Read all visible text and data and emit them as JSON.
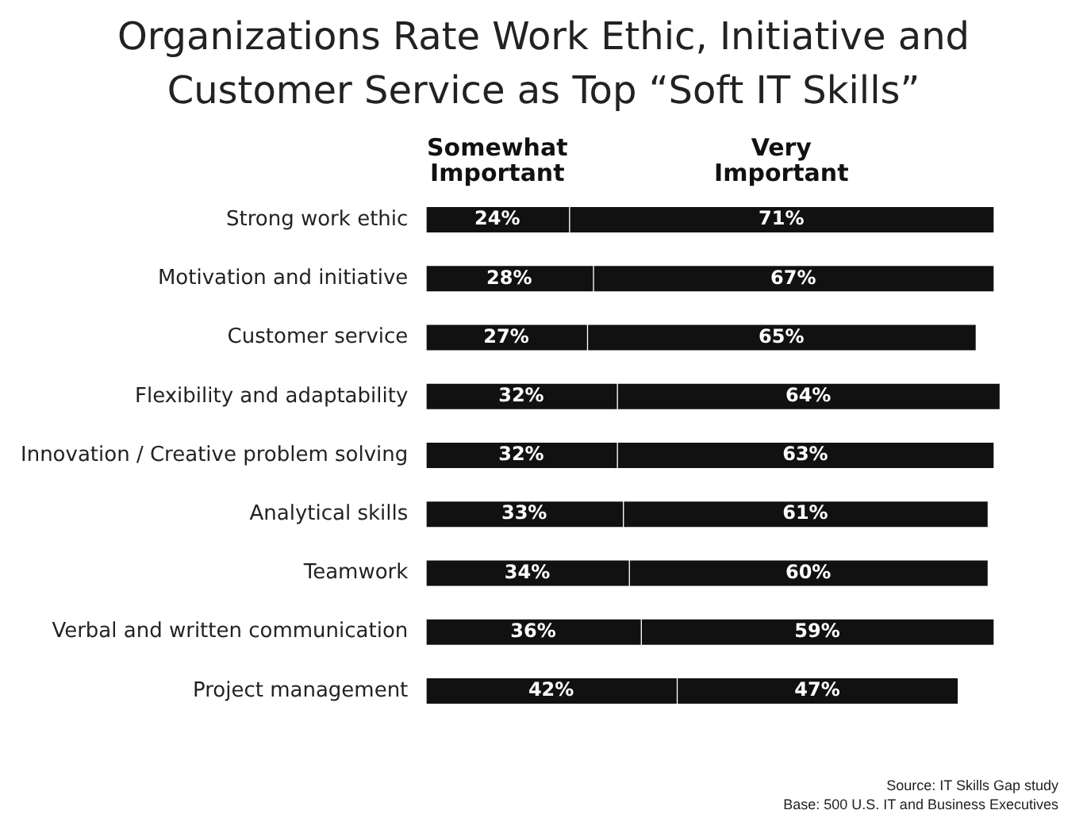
{
  "chart_data": {
    "type": "bar",
    "orientation": "horizontal",
    "stacked": true,
    "title": "Organizations Rate Work Ethic, Initiative and Customer Service as Top “Soft IT Skills”",
    "categories": [
      "Strong work ethic",
      "Motivation and initiative",
      "Customer service",
      "Flexibility and adaptability",
      "Innovation / Creative problem solving",
      "Analytical skills",
      "Teamwork",
      "Verbal and written communication",
      "Project management"
    ],
    "series": [
      {
        "name": "Somewhat Important",
        "color": "#111111",
        "values": [
          24,
          28,
          27,
          32,
          32,
          33,
          34,
          36,
          42
        ],
        "value_labels": [
          "24%",
          "28%",
          "27%",
          "32%",
          "32%",
          "33%",
          "34%",
          "36%",
          "42%"
        ]
      },
      {
        "name": "Very Important",
        "color": "#111111",
        "values": [
          71,
          67,
          65,
          64,
          63,
          61,
          60,
          59,
          47
        ],
        "value_labels": [
          "71%",
          "67%",
          "65%",
          "64%",
          "63%",
          "61%",
          "60%",
          "59%",
          "47%"
        ]
      }
    ],
    "tick_labels": "y",
    "legend": "top",
    "annotations": [
      "Source: IT Skills Gap study",
      "Base: 500 U.S. IT and Business Executives"
    ]
  }
}
